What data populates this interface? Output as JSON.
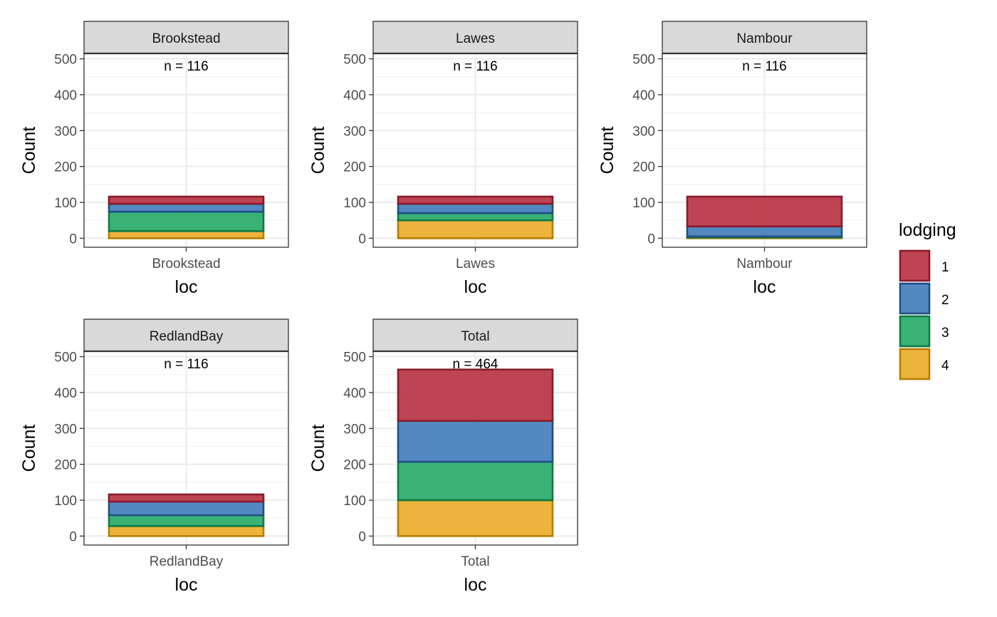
{
  "chart_data": {
    "type": "bar",
    "stacked": true,
    "fill_variable": "lodging",
    "xlabel": "loc",
    "ylabel": "Count",
    "ylim": [
      0,
      500
    ],
    "y_ticks": [
      0,
      100,
      200,
      300,
      400,
      500
    ],
    "grid": true,
    "legend": {
      "title": "lodging",
      "position": "right",
      "levels": [
        "1",
        "2",
        "3",
        "4"
      ],
      "fill_colors": [
        "#BB3A4A",
        "#4A82BE",
        "#30AE6E",
        "#EBB033"
      ],
      "border_colors": [
        "#8B1A2A",
        "#1F4F85",
        "#0F7A43",
        "#B57E00"
      ]
    },
    "panels": [
      {
        "strip": "Brookstead",
        "category": "Brookstead",
        "n_label": "n = 116",
        "segments": [
          {
            "lodging": "1",
            "value": 20
          },
          {
            "lodging": "2",
            "value": 22
          },
          {
            "lodging": "3",
            "value": 54
          },
          {
            "lodging": "4",
            "value": 20
          }
        ]
      },
      {
        "strip": "Lawes",
        "category": "Lawes",
        "n_label": "n = 116",
        "segments": [
          {
            "lodging": "1",
            "value": 20
          },
          {
            "lodging": "2",
            "value": 26
          },
          {
            "lodging": "3",
            "value": 20
          },
          {
            "lodging": "4",
            "value": 50
          }
        ]
      },
      {
        "strip": "Nambour",
        "category": "Nambour",
        "n_label": "n = 116",
        "segments": [
          {
            "lodging": "1",
            "value": 83
          },
          {
            "lodging": "2",
            "value": 28
          },
          {
            "lodging": "3",
            "value": 3
          },
          {
            "lodging": "4",
            "value": 2
          }
        ]
      },
      {
        "strip": "RedlandBay",
        "category": "RedlandBay",
        "n_label": "n = 116",
        "segments": [
          {
            "lodging": "1",
            "value": 20
          },
          {
            "lodging": "2",
            "value": 38
          },
          {
            "lodging": "3",
            "value": 30
          },
          {
            "lodging": "4",
            "value": 28
          }
        ]
      },
      {
        "strip": "Total",
        "category": "Total",
        "n_label": "n = 464",
        "segments": [
          {
            "lodging": "1",
            "value": 143
          },
          {
            "lodging": "2",
            "value": 114
          },
          {
            "lodging": "3",
            "value": 107
          },
          {
            "lodging": "4",
            "value": 100
          }
        ]
      }
    ]
  }
}
